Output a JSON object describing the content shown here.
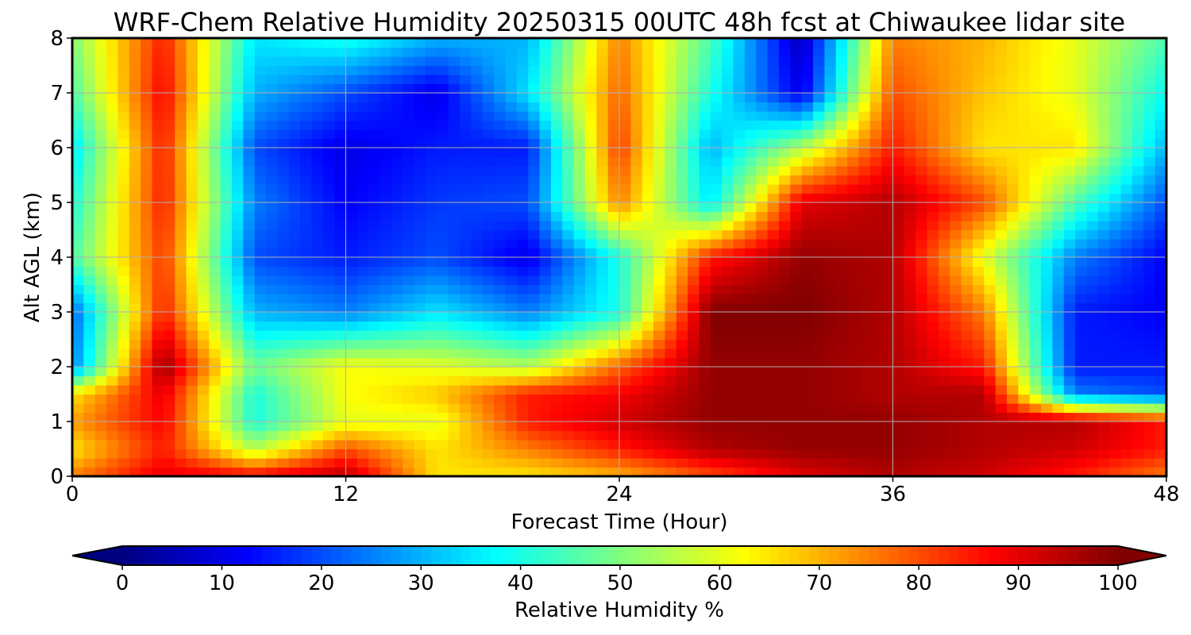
{
  "chart_data": {
    "type": "heatmap",
    "title": "WRF-Chem Relative Humidity 20250315 00UTC 48h fcst at Chiwaukee lidar site",
    "xlabel": "Forecast Time (Hour)",
    "ylabel": "Alt AGL (km)",
    "xlim": [
      0,
      48
    ],
    "ylim": [
      0,
      8
    ],
    "x_ticks": [
      "0",
      "12",
      "24",
      "36",
      "48"
    ],
    "y_ticks": [
      "0",
      "1",
      "2",
      "3",
      "4",
      "5",
      "6",
      "7",
      "8"
    ],
    "grid": true,
    "colormap": "jet",
    "colorbar": {
      "label": "Relative Humidity %",
      "range": [
        0,
        100
      ],
      "ticks": [
        "0",
        "10",
        "20",
        "30",
        "40",
        "50",
        "60",
        "70",
        "80",
        "90",
        "100"
      ],
      "extend": "both",
      "orientation": "horizontal"
    },
    "x": [
      0,
      4,
      8,
      12,
      16,
      20,
      24,
      28,
      32,
      36,
      40,
      44,
      48
    ],
    "y": [
      0,
      0.5,
      1,
      1.5,
      2,
      3,
      4,
      5,
      6,
      7,
      8
    ],
    "z": [
      [
        75,
        90,
        88,
        95,
        65,
        65,
        70,
        80,
        90,
        95,
        92,
        85,
        75
      ],
      [
        65,
        85,
        55,
        80,
        65,
        75,
        85,
        95,
        98,
        98,
        95,
        92,
        85
      ],
      [
        72,
        88,
        40,
        60,
        60,
        85,
        92,
        98,
        98,
        98,
        95,
        95,
        85
      ],
      [
        65,
        90,
        40,
        62,
        68,
        85,
        88,
        98,
        98,
        95,
        95,
        25,
        20
      ],
      [
        25,
        98,
        48,
        62,
        60,
        55,
        78,
        98,
        98,
        95,
        85,
        15,
        15
      ],
      [
        22,
        85,
        30,
        25,
        35,
        25,
        40,
        100,
        100,
        95,
        75,
        15,
        12
      ],
      [
        45,
        82,
        20,
        15,
        20,
        10,
        40,
        85,
        98,
        95,
        60,
        25,
        12
      ],
      [
        40,
        85,
        25,
        12,
        18,
        20,
        75,
        35,
        90,
        95,
        80,
        45,
        20
      ],
      [
        35,
        85,
        20,
        10,
        15,
        15,
        82,
        30,
        55,
        85,
        65,
        65,
        30
      ],
      [
        45,
        88,
        30,
        20,
        10,
        35,
        78,
        40,
        10,
        80,
        68,
        60,
        38
      ],
      [
        50,
        85,
        35,
        40,
        30,
        30,
        75,
        45,
        5,
        75,
        70,
        60,
        45
      ]
    ]
  }
}
